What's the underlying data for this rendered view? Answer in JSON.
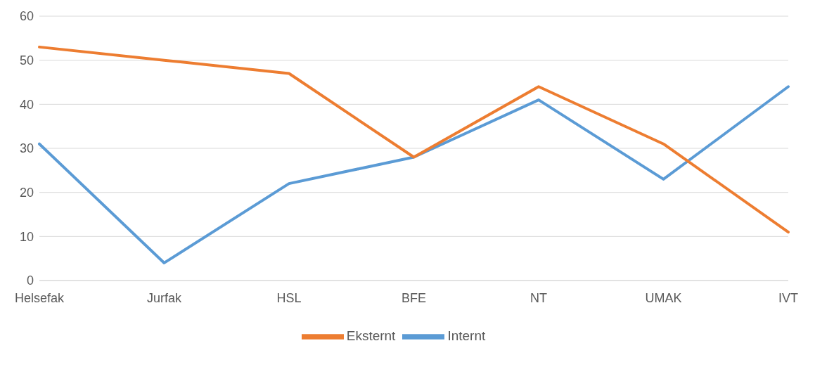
{
  "chart_data": {
    "type": "line",
    "categories": [
      "Helsefak",
      "Jurfak",
      "HSL",
      "BFE",
      "NT",
      "UMAK",
      "IVT"
    ],
    "series": [
      {
        "name": "Internt",
        "color": "#5b9bd5",
        "values": [
          31,
          4,
          22,
          28,
          41,
          23,
          44
        ]
      },
      {
        "name": "Eksternt",
        "color": "#ed7d31",
        "values": [
          53,
          50,
          47,
          28,
          44,
          31,
          11
        ]
      }
    ],
    "ylim": [
      0,
      60
    ],
    "yticks": [
      0,
      10,
      20,
      30,
      40,
      50,
      60
    ],
    "grid": "y",
    "legend": "bottom",
    "marker": "none",
    "line_style": "solid"
  }
}
